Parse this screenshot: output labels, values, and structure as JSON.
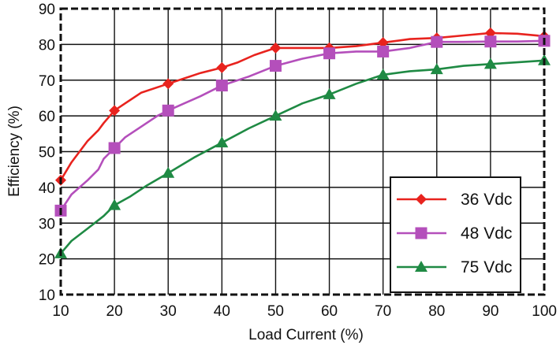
{
  "chart_data": {
    "type": "line",
    "xlabel": "Load Current (%)",
    "ylabel": "Efficiency (%)",
    "xlim": [
      10,
      100
    ],
    "ylim": [
      10,
      90
    ],
    "xticks": [
      10,
      20,
      30,
      40,
      50,
      60,
      70,
      80,
      90,
      100
    ],
    "yticks": [
      10,
      20,
      30,
      40,
      50,
      60,
      70,
      80,
      90
    ],
    "grid": true,
    "legend": "bottom-right",
    "series": [
      {
        "name": "36  Vdc",
        "color": "#e8231e",
        "marker": "diamond",
        "x": [
          10,
          12,
          15,
          17,
          18,
          20,
          22,
          25,
          28,
          30,
          33,
          36,
          40,
          43,
          46,
          48,
          50,
          55,
          60,
          65,
          70,
          75,
          80,
          85,
          90,
          95,
          100
        ],
        "y": [
          42,
          47,
          53,
          56,
          58,
          61.5,
          63.5,
          66.5,
          68,
          69,
          70.5,
          72,
          73.5,
          75,
          77,
          78,
          79,
          79,
          79,
          79.5,
          80.5,
          81.5,
          81.8,
          82.5,
          83.2,
          83,
          82.3
        ],
        "markers_x": [
          10,
          20,
          30,
          40,
          50,
          60,
          70,
          80,
          90,
          100
        ],
        "markers_y": [
          42,
          61.5,
          69,
          73.5,
          79,
          79,
          80.5,
          81.8,
          83.2,
          82.3
        ]
      },
      {
        "name": "48  Vdc",
        "color": "#b44fbb",
        "marker": "square",
        "x": [
          10,
          12,
          15,
          17,
          18,
          20,
          22,
          25,
          28,
          30,
          33,
          36,
          40,
          45,
          50,
          55,
          60,
          65,
          70,
          75,
          80,
          85,
          90,
          95,
          100
        ],
        "y": [
          33.5,
          38,
          42,
          45,
          48,
          51,
          54,
          57,
          60,
          61.5,
          63.5,
          65.5,
          68.5,
          71,
          74,
          76,
          77.5,
          78,
          78,
          79,
          80.7,
          80.7,
          80.8,
          80.8,
          81
        ],
        "markers_x": [
          10,
          20,
          30,
          40,
          50,
          60,
          70,
          80,
          90,
          100
        ],
        "markers_y": [
          33.5,
          51,
          61.5,
          68.5,
          74,
          77.5,
          78,
          80.7,
          80.8,
          81
        ]
      },
      {
        "name": "75  Vdc",
        "color": "#1f8a44",
        "marker": "triangle",
        "x": [
          10,
          12,
          15,
          18,
          20,
          23,
          26,
          30,
          35,
          40,
          45,
          50,
          55,
          60,
          65,
          70,
          75,
          80,
          85,
          90,
          95,
          100
        ],
        "y": [
          21.5,
          25,
          28.5,
          32,
          35,
          37.5,
          40.5,
          44,
          48.5,
          52.5,
          56.5,
          60,
          63.5,
          66,
          69,
          71.5,
          72.5,
          73,
          74,
          74.5,
          75,
          75.5
        ],
        "markers_x": [
          10,
          20,
          30,
          40,
          50,
          60,
          70,
          80,
          90,
          100
        ],
        "markers_y": [
          21.5,
          35,
          44,
          52.5,
          60,
          66,
          71.5,
          73,
          74.5,
          75.5
        ]
      }
    ]
  }
}
